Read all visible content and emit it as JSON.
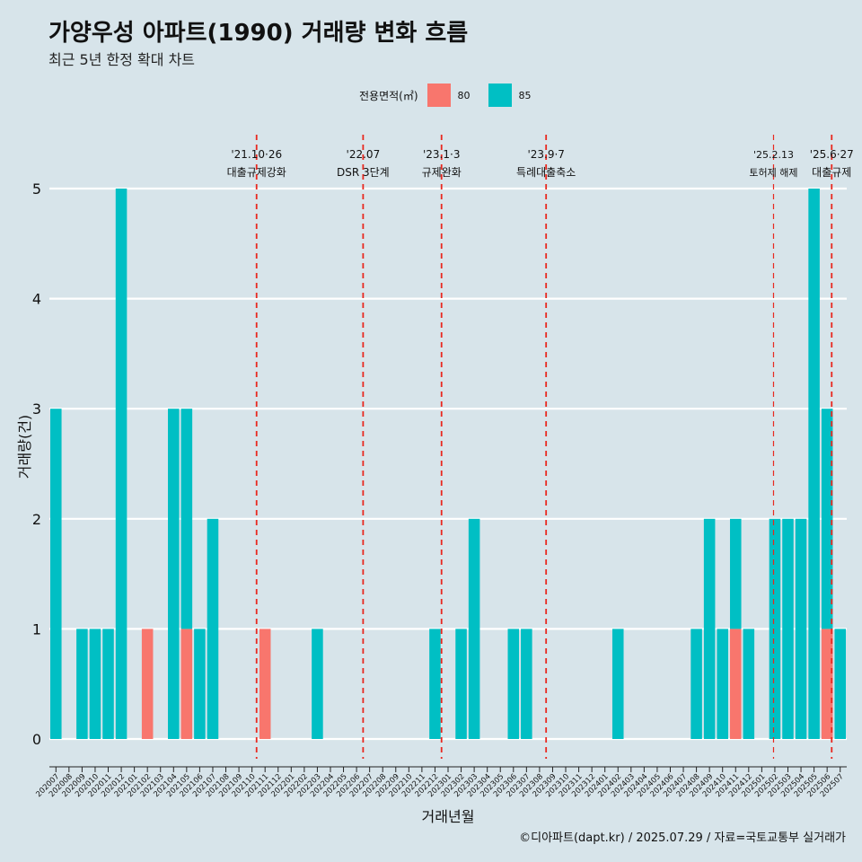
{
  "title": "가양우성 아파트(1990) 거래량 변화 흐름",
  "subtitle": "최근 5년 한정 확대 차트",
  "legend": {
    "title": "전용면적(㎡)",
    "items": [
      {
        "label": "80",
        "color": "#f8766d"
      },
      {
        "label": "85",
        "color": "#00bfc4"
      }
    ]
  },
  "caption": "©디아파트(dapt.kr) / 2025.07.29 / 자료=국토교통부 실거래가",
  "chart_data": {
    "type": "bar",
    "stacked": true,
    "xlabel": "거래년월",
    "ylabel": "거래량(건)",
    "ylim": [
      0,
      5
    ],
    "yticks": [
      0,
      1,
      2,
      3,
      4,
      5
    ],
    "grid": true,
    "categories": [
      "202007",
      "202008",
      "202009",
      "202010",
      "202011",
      "202012",
      "202101",
      "202102",
      "202103",
      "202104",
      "202105",
      "202106",
      "202107",
      "202108",
      "202109",
      "202110",
      "202111",
      "202112",
      "202201",
      "202202",
      "202203",
      "202204",
      "202205",
      "202206",
      "202207",
      "202208",
      "202209",
      "202210",
      "202211",
      "202212",
      "202301",
      "202302",
      "202303",
      "202304",
      "202305",
      "202306",
      "202307",
      "202308",
      "202309",
      "202310",
      "202311",
      "202312",
      "202401",
      "202402",
      "202403",
      "202404",
      "202405",
      "202406",
      "202407",
      "202408",
      "202409",
      "202410",
      "202411",
      "202412",
      "202501",
      "202502",
      "202503",
      "202504",
      "202505",
      "202506",
      "202507"
    ],
    "series": [
      {
        "name": "80",
        "color": "#f8766d",
        "points": [
          [
            "202102",
            1
          ],
          [
            "202105",
            1
          ],
          [
            "202111",
            1
          ],
          [
            "202411",
            1
          ],
          [
            "202506",
            1
          ]
        ]
      },
      {
        "name": "85",
        "color": "#00bfc4",
        "points": [
          [
            "202007",
            3
          ],
          [
            "202009",
            1
          ],
          [
            "202010",
            1
          ],
          [
            "202011",
            1
          ],
          [
            "202012",
            5
          ],
          [
            "202104",
            3
          ],
          [
            "202105",
            2
          ],
          [
            "202106",
            1
          ],
          [
            "202107",
            2
          ],
          [
            "202203",
            1
          ],
          [
            "202212",
            1
          ],
          [
            "202302",
            1
          ],
          [
            "202303",
            2
          ],
          [
            "202306",
            1
          ],
          [
            "202307",
            1
          ],
          [
            "202402",
            1
          ],
          [
            "202408",
            1
          ],
          [
            "202409",
            2
          ],
          [
            "202410",
            1
          ],
          [
            "202411",
            1
          ],
          [
            "202412",
            1
          ],
          [
            "202502",
            2
          ],
          [
            "202503",
            2
          ],
          [
            "202504",
            2
          ],
          [
            "202505",
            5
          ],
          [
            "202506",
            2
          ],
          [
            "202507",
            1
          ]
        ]
      }
    ],
    "annotations": [
      {
        "x": "202110.85",
        "date": "'21.10·26",
        "label": "대출규제강화",
        "style": "normal"
      },
      {
        "x": "202207",
        "date": "'22.07",
        "label": "DSR 3단계",
        "style": "normal"
      },
      {
        "x": "202301",
        "date": "'23.1·3",
        "label": "규제완화",
        "style": "normal"
      },
      {
        "x": "202309",
        "date": "'23.9·7",
        "label": "특례대출축소",
        "style": "normal"
      },
      {
        "x": "202502.4",
        "date": "'25.2.13",
        "label": "토허제 해제",
        "style": "thin"
      },
      {
        "x": "202506.85",
        "date": "'25.6·27",
        "label": "대출규제",
        "style": "normal"
      }
    ]
  }
}
